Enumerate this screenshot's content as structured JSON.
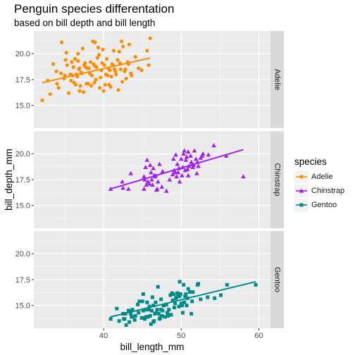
{
  "chart_data": {
    "type": "scatter",
    "title": "Penguin species differentation",
    "subtitle": "based on bill depth and bill length",
    "xlabel": "bill_length_mm",
    "ylabel": "bill_depth_mm",
    "xlim": [
      31,
      61.5
    ],
    "ylim": [
      12.8,
      22.2
    ],
    "x_ticks": [
      40,
      50,
      60
    ],
    "y_ticks": [
      15.0,
      17.5,
      20.0
    ],
    "y_tick_labels": [
      "15.0",
      "17.5",
      "20.0"
    ],
    "facets": "rows by species",
    "grid": true,
    "legend": {
      "title": "species",
      "position": "right"
    },
    "series": [
      {
        "name": "Adelie",
        "color": "#ff8c00",
        "marker": "circle",
        "trend": [
          [
            32.1,
            17.2
          ],
          [
            46.0,
            19.6
          ]
        ],
        "points": [
          [
            32.1,
            15.5
          ],
          [
            33.1,
            16.1
          ],
          [
            33.5,
            19.0
          ],
          [
            34.0,
            17.1
          ],
          [
            34.5,
            18.1
          ],
          [
            34.6,
            21.1
          ],
          [
            35.0,
            17.9
          ],
          [
            35.1,
            19.4
          ],
          [
            35.3,
            18.9
          ],
          [
            35.5,
            16.2
          ],
          [
            35.7,
            18.0
          ],
          [
            35.9,
            19.2
          ],
          [
            36.0,
            17.9
          ],
          [
            36.2,
            17.2
          ],
          [
            36.3,
            19.5
          ],
          [
            36.4,
            17.0
          ],
          [
            36.5,
            18.0
          ],
          [
            36.6,
            17.8
          ],
          [
            36.7,
            19.3
          ],
          [
            36.8,
            18.5
          ],
          [
            36.9,
            18.6
          ],
          [
            37.0,
            16.9
          ],
          [
            37.2,
            18.1
          ],
          [
            37.3,
            20.5
          ],
          [
            37.5,
            18.9
          ],
          [
            37.6,
            19.1
          ],
          [
            37.7,
            18.7
          ],
          [
            37.8,
            17.1
          ],
          [
            37.9,
            18.6
          ],
          [
            38.0,
            17.1
          ],
          [
            38.1,
            18.6
          ],
          [
            38.2,
            18.1
          ],
          [
            38.3,
            19.2
          ],
          [
            38.5,
            17.9
          ],
          [
            38.6,
            21.2
          ],
          [
            38.7,
            19.0
          ],
          [
            38.8,
            17.2
          ],
          [
            38.9,
            18.8
          ],
          [
            39.0,
            17.5
          ],
          [
            39.1,
            18.7
          ],
          [
            39.2,
            19.6
          ],
          [
            39.3,
            20.6
          ],
          [
            39.5,
            16.7
          ],
          [
            39.6,
            17.7
          ],
          [
            39.7,
            18.4
          ],
          [
            39.8,
            19.1
          ],
          [
            40.1,
            18.9
          ],
          [
            40.2,
            17.0
          ],
          [
            40.3,
            18.0
          ],
          [
            40.5,
            17.9
          ],
          [
            40.6,
            18.6
          ],
          [
            40.7,
            17.0
          ],
          [
            40.8,
            18.4
          ],
          [
            40.9,
            16.8
          ],
          [
            41.0,
            17.8
          ],
          [
            41.1,
            19.0
          ],
          [
            41.3,
            20.3
          ],
          [
            41.4,
            18.5
          ],
          [
            41.5,
            18.3
          ],
          [
            41.6,
            18.0
          ],
          [
            41.8,
            19.4
          ],
          [
            42.0,
            20.2
          ],
          [
            42.1,
            19.1
          ],
          [
            42.2,
            18.5
          ],
          [
            42.3,
            21.2
          ],
          [
            42.5,
            20.7
          ],
          [
            42.7,
            18.3
          ],
          [
            42.8,
            18.5
          ],
          [
            42.9,
            17.6
          ],
          [
            43.1,
            19.2
          ],
          [
            43.2,
            19.0
          ],
          [
            43.3,
            20.9
          ],
          [
            43.5,
            18.1
          ],
          [
            44.1,
            19.7
          ],
          [
            44.5,
            18.6
          ],
          [
            45.6,
            20.3
          ],
          [
            45.8,
            18.9
          ],
          [
            46.0,
            21.5
          ],
          [
            32.8,
            17.4
          ],
          [
            33.9,
            18.3
          ],
          [
            34.2,
            16.7
          ],
          [
            35.2,
            20.1
          ],
          [
            35.8,
            17.4
          ],
          [
            36.1,
            18.7
          ],
          [
            36.9,
            16.4
          ],
          [
            37.4,
            16.3
          ],
          [
            38.4,
            16.9
          ],
          [
            39.4,
            19.9
          ],
          [
            40.0,
            16.4
          ],
          [
            41.9,
            16.5
          ],
          [
            42.4,
            17.3
          ],
          [
            43.6,
            17.9
          ],
          [
            37.1,
            18.2
          ],
          [
            38.9,
            21.1
          ],
          [
            40.4,
            19.5
          ],
          [
            36.7,
            20.0
          ],
          [
            39.9,
            20.4
          ],
          [
            41.2,
            18.9
          ],
          [
            34.9,
            17.6
          ],
          [
            44.9,
            18.4
          ]
        ]
      },
      {
        "name": "Chinstrap",
        "color": "#a020f0",
        "marker": "triangle",
        "trend": [
          [
            40.9,
            16.6
          ],
          [
            58.0,
            20.4
          ]
        ],
        "points": [
          [
            40.9,
            16.6
          ],
          [
            42.4,
            17.3
          ],
          [
            42.5,
            16.7
          ],
          [
            43.2,
            16.6
          ],
          [
            43.5,
            18.1
          ],
          [
            45.2,
            16.6
          ],
          [
            45.2,
            17.8
          ],
          [
            45.4,
            18.7
          ],
          [
            45.5,
            17.0
          ],
          [
            45.6,
            19.4
          ],
          [
            45.7,
            17.3
          ],
          [
            45.9,
            17.1
          ],
          [
            46.0,
            18.9
          ],
          [
            46.1,
            18.2
          ],
          [
            46.2,
            17.5
          ],
          [
            46.4,
            18.6
          ],
          [
            46.5,
            17.9
          ],
          [
            46.6,
            17.8
          ],
          [
            46.7,
            17.9
          ],
          [
            46.8,
            16.5
          ],
          [
            46.9,
            16.6
          ],
          [
            47.0,
            17.3
          ],
          [
            47.5,
            16.8
          ],
          [
            47.6,
            18.3
          ],
          [
            48.1,
            16.4
          ],
          [
            48.5,
            17.5
          ],
          [
            49.0,
            19.5
          ],
          [
            49.2,
            18.2
          ],
          [
            49.3,
            19.9
          ],
          [
            49.5,
            19.0
          ],
          [
            49.6,
            18.2
          ],
          [
            49.7,
            18.6
          ],
          [
            49.8,
            17.3
          ],
          [
            50.0,
            19.5
          ],
          [
            50.1,
            17.9
          ],
          [
            50.2,
            18.7
          ],
          [
            50.3,
            20.0
          ],
          [
            50.5,
            18.4
          ],
          [
            50.6,
            19.4
          ],
          [
            50.7,
            19.7
          ],
          [
            50.8,
            18.5
          ],
          [
            50.9,
            17.9
          ],
          [
            51.0,
            18.8
          ],
          [
            51.3,
            19.2
          ],
          [
            51.4,
            19.0
          ],
          [
            51.5,
            18.7
          ],
          [
            51.7,
            20.3
          ],
          [
            51.9,
            19.5
          ],
          [
            52.0,
            18.1
          ],
          [
            52.2,
            18.8
          ],
          [
            52.7,
            19.8
          ],
          [
            52.8,
            20.0
          ],
          [
            53.5,
            19.9
          ],
          [
            54.2,
            20.8
          ],
          [
            55.8,
            19.8
          ],
          [
            58.0,
            17.8
          ],
          [
            46.3,
            17.0
          ],
          [
            47.2,
            19.0
          ],
          [
            48.9,
            18.0
          ],
          [
            49.4,
            17.8
          ],
          [
            50.4,
            20.3
          ],
          [
            51.2,
            19.8
          ],
          [
            52.5,
            19.6
          ],
          [
            51.6,
            18.9
          ],
          [
            50.9,
            20.2
          ],
          [
            52.1,
            19.2
          ],
          [
            49.1,
            18.4
          ],
          [
            45.3,
            17.5
          ]
        ]
      },
      {
        "name": "Gentoo",
        "color": "#008b8b",
        "marker": "square",
        "trend": [
          [
            40.9,
            13.9
          ],
          [
            59.6,
            17.3
          ]
        ],
        "points": [
          [
            40.9,
            13.7
          ],
          [
            41.7,
            14.7
          ],
          [
            42.0,
            13.5
          ],
          [
            42.6,
            13.7
          ],
          [
            42.7,
            13.7
          ],
          [
            42.8,
            14.2
          ],
          [
            42.9,
            13.1
          ],
          [
            43.2,
            14.5
          ],
          [
            43.3,
            13.4
          ],
          [
            43.4,
            14.4
          ],
          [
            43.5,
            14.2
          ],
          [
            43.6,
            13.9
          ],
          [
            43.8,
            13.9
          ],
          [
            44.0,
            13.6
          ],
          [
            44.4,
            15.1
          ],
          [
            44.5,
            14.3
          ],
          [
            44.9,
            13.8
          ],
          [
            45.0,
            15.4
          ],
          [
            45.1,
            14.5
          ],
          [
            45.2,
            13.8
          ],
          [
            45.3,
            13.7
          ],
          [
            45.4,
            14.6
          ],
          [
            45.5,
            13.9
          ],
          [
            45.7,
            13.9
          ],
          [
            45.8,
            14.6
          ],
          [
            46.1,
            13.2
          ],
          [
            46.2,
            14.5
          ],
          [
            46.3,
            15.8
          ],
          [
            46.4,
            15.0
          ],
          [
            46.5,
            13.5
          ],
          [
            46.6,
            14.2
          ],
          [
            46.7,
            15.3
          ],
          [
            46.8,
            14.3
          ],
          [
            46.9,
            14.6
          ],
          [
            47.0,
            16.8
          ],
          [
            47.2,
            13.7
          ],
          [
            47.3,
            13.8
          ],
          [
            47.4,
            14.6
          ],
          [
            47.5,
            14.0
          ],
          [
            47.6,
            14.5
          ],
          [
            47.7,
            15.0
          ],
          [
            47.8,
            15.0
          ],
          [
            48.1,
            15.1
          ],
          [
            48.2,
            14.3
          ],
          [
            48.4,
            14.6
          ],
          [
            48.5,
            14.1
          ],
          [
            48.6,
            16.0
          ],
          [
            48.7,
            14.1
          ],
          [
            48.8,
            16.2
          ],
          [
            49.0,
            16.1
          ],
          [
            49.1,
            14.8
          ],
          [
            49.2,
            15.2
          ],
          [
            49.3,
            15.7
          ],
          [
            49.4,
            15.8
          ],
          [
            49.5,
            16.2
          ],
          [
            49.6,
            16.0
          ],
          [
            49.8,
            15.9
          ],
          [
            49.9,
            16.1
          ],
          [
            50.0,
            15.2
          ],
          [
            50.1,
            15.0
          ],
          [
            50.2,
            14.3
          ],
          [
            50.4,
            15.3
          ],
          [
            50.5,
            15.9
          ],
          [
            50.7,
            15.0
          ],
          [
            50.8,
            15.7
          ],
          [
            51.1,
            16.3
          ],
          [
            51.3,
            14.2
          ],
          [
            51.5,
            16.3
          ],
          [
            52.1,
            17.0
          ],
          [
            52.2,
            17.1
          ],
          [
            52.5,
            15.6
          ],
          [
            53.4,
            15.8
          ],
          [
            54.3,
            15.7
          ],
          [
            55.1,
            16.0
          ],
          [
            55.9,
            17.0
          ],
          [
            59.6,
            17.0
          ],
          [
            44.1,
            14.0
          ],
          [
            45.6,
            15.3
          ],
          [
            46.0,
            14.0
          ],
          [
            47.9,
            13.9
          ],
          [
            48.3,
            14.0
          ],
          [
            49.7,
            14.9
          ],
          [
            50.3,
            17.0
          ],
          [
            51.4,
            15.4
          ],
          [
            45.9,
            14.9
          ],
          [
            44.6,
            15.4
          ],
          [
            47.1,
            14.2
          ],
          [
            48.9,
            15.5
          ],
          [
            50.6,
            16.1
          ],
          [
            46.4,
            13.4
          ],
          [
            43.7,
            14.6
          ],
          [
            49.8,
            17.3
          ],
          [
            42.5,
            14.2
          ],
          [
            47.4,
            15.6
          ],
          [
            45.1,
            16.1
          ],
          [
            50.9,
            16.6
          ]
        ]
      }
    ]
  }
}
